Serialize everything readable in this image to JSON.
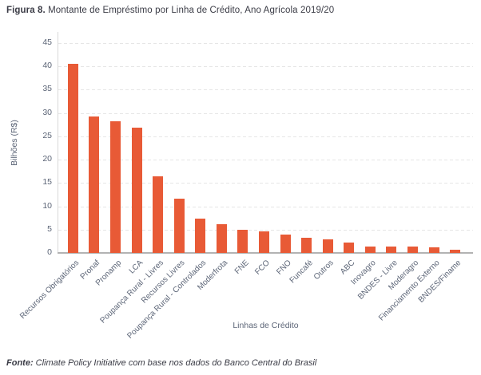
{
  "figure": {
    "label": "Figura 8.",
    "caption": "Montante de Empréstimo por Linha de Crédito, Ano Agrícola 2019/20"
  },
  "source": {
    "label": "Fonte:",
    "text": "Climate Policy Initiative com base nos dados do Banco Central do Brasil"
  },
  "chart_data": {
    "type": "bar",
    "title": "Montante de Empréstimo por Linha de Crédito, Ano Agrícola 2019/20",
    "categories": [
      "Recursos Obrigatórios",
      "Pronaf",
      "Pronamp",
      "LCA",
      "Poupança Rural - Livres",
      "Recursos Livres",
      "Poupança Rural - Controlados",
      "Moderfrota",
      "FNE",
      "FCO",
      "FNO",
      "Funcafé",
      "Outros",
      "ABC",
      "Inovagro",
      "BNDES - Livre",
      "Moderagro",
      "Financiamento Externo",
      "BNDES/Finame"
    ],
    "values": [
      40.5,
      29.2,
      28.2,
      26.9,
      16.5,
      11.7,
      7.4,
      6.2,
      4.9,
      4.6,
      4.0,
      3.2,
      2.9,
      2.3,
      1.4,
      1.4,
      1.3,
      1.2,
      0.6
    ],
    "xlabel": "Linhas de Crédito",
    "ylabel": "Bilhões (R$)",
    "ylim": [
      0,
      45
    ],
    "yticks": [
      0,
      5,
      10,
      15,
      20,
      25,
      30,
      35,
      40,
      45
    ],
    "grid": true,
    "legend": false,
    "colors": {
      "bar": "#E85A36",
      "gridline": "#E6E6E6",
      "axis_line": "#B3B3B3",
      "y_axis_line": "#D9D9D9",
      "axis_text": "#5C6577",
      "title_text": "#3B3C46"
    }
  }
}
